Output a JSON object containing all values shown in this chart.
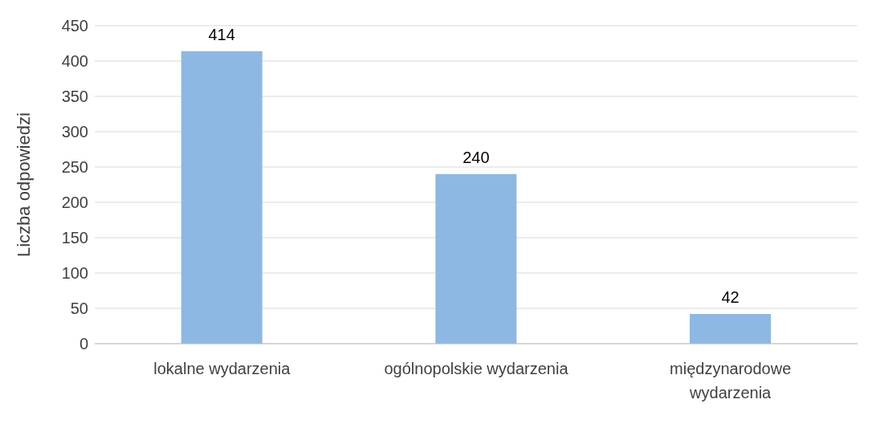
{
  "chart_data": {
    "type": "bar",
    "ylabel": "Liczba odpowiedzi",
    "categories": [
      "lokalne wydarzenia",
      "ogólnopolskie wydarzenia",
      "międzynarodowe wydarzenia"
    ],
    "values": [
      414,
      240,
      42
    ],
    "color": "#8db8e3",
    "ylim": [
      0,
      450
    ],
    "yticks": [
      0,
      50,
      100,
      150,
      200,
      250,
      300,
      350,
      400,
      450
    ],
    "grid": "y",
    "data_labels": true
  }
}
